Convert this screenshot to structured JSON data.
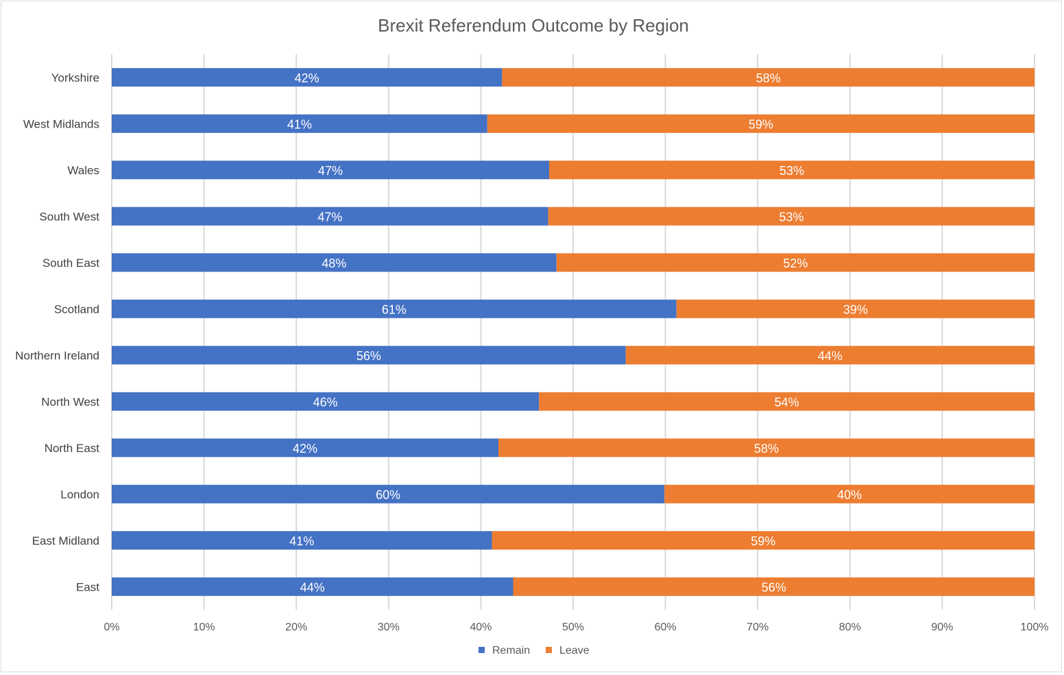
{
  "chart_data": {
    "type": "bar",
    "orientation": "horizontal",
    "stacking": "percent",
    "title": "Brexit Referendum  Outcome by Region",
    "categories": [
      "East",
      "East Midland",
      "London",
      "North East",
      "North West",
      "Northern Ireland",
      "Scotland",
      "South East",
      "South West",
      "Wales",
      "West Midlands",
      "Yorkshire"
    ],
    "series": [
      {
        "name": "Remain",
        "color": "#4472C4",
        "values": [
          43.5,
          41.2,
          59.9,
          41.9,
          46.3,
          55.7,
          61.2,
          48.2,
          47.3,
          47.4,
          40.7,
          42.3
        ],
        "labels": [
          "44%",
          "41%",
          "60%",
          "42%",
          "46%",
          "56%",
          "61%",
          "48%",
          "47%",
          "47%",
          "41%",
          "42%"
        ]
      },
      {
        "name": "Leave",
        "color": "#ED7D31",
        "values": [
          56.5,
          58.8,
          40.1,
          58.1,
          53.7,
          44.3,
          38.8,
          51.8,
          52.7,
          52.6,
          59.3,
          57.7
        ],
        "labels": [
          "56%",
          "59%",
          "40%",
          "58%",
          "54%",
          "44%",
          "39%",
          "52%",
          "53%",
          "53%",
          "59%",
          "58%"
        ]
      }
    ],
    "xlim": [
      0,
      100
    ],
    "x_ticks": [
      "0%",
      "10%",
      "20%",
      "30%",
      "40%",
      "50%",
      "60%",
      "70%",
      "80%",
      "90%",
      "100%"
    ],
    "grid": true,
    "legend_position": "bottom",
    "xlabel": "",
    "ylabel": ""
  }
}
